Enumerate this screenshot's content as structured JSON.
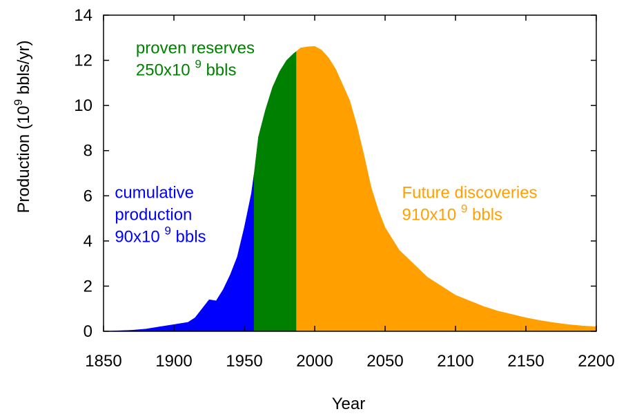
{
  "chart_data": {
    "type": "area",
    "title": "",
    "xlabel": "Year",
    "ylabel": {
      "pre": "Production (10",
      "sup": "9",
      "post": " bbls/yr)"
    },
    "xlim": [
      1850,
      2200
    ],
    "ylim": [
      0,
      14
    ],
    "x_ticks": [
      1850,
      1900,
      1950,
      2000,
      2050,
      2100,
      2150,
      2200
    ],
    "y_ticks": [
      0,
      2,
      4,
      6,
      8,
      10,
      12,
      14
    ],
    "grid": false,
    "series": [
      {
        "key": "cumulative",
        "color": "#0000ff",
        "x": [
          1850,
          1870,
          1880,
          1890,
          1900,
          1910,
          1915,
          1920,
          1925,
          1930,
          1935,
          1940,
          1945,
          1950,
          1955,
          1957
        ],
        "y": [
          0.0,
          0.05,
          0.1,
          0.2,
          0.3,
          0.4,
          0.6,
          1.0,
          1.4,
          1.35,
          1.85,
          2.5,
          3.3,
          4.6,
          6.1,
          7.0
        ]
      },
      {
        "key": "proven",
        "color": "#008000",
        "x": [
          1957,
          1960,
          1965,
          1970,
          1975,
          1980,
          1985,
          1987
        ],
        "y": [
          7.0,
          8.6,
          9.8,
          10.8,
          11.5,
          12.0,
          12.3,
          12.4
        ]
      },
      {
        "key": "future",
        "color": "#ffa000",
        "x": [
          1987,
          1990,
          1995,
          2000,
          2005,
          2010,
          2015,
          2020,
          2025,
          2030,
          2035,
          2040,
          2045,
          2050,
          2060,
          2070,
          2080,
          2090,
          2100,
          2110,
          2120,
          2130,
          2140,
          2150,
          2160,
          2170,
          2180,
          2190,
          2200
        ],
        "y": [
          12.4,
          12.55,
          12.6,
          12.62,
          12.45,
          12.1,
          11.6,
          10.9,
          10.2,
          9.1,
          7.8,
          6.4,
          5.4,
          4.6,
          3.6,
          3.0,
          2.4,
          2.0,
          1.6,
          1.35,
          1.1,
          0.9,
          0.75,
          0.6,
          0.48,
          0.38,
          0.3,
          0.24,
          0.2
        ]
      }
    ],
    "annotations": [
      {
        "key": "cumulative",
        "color": "#0000ff",
        "lines": [
          "cumulative",
          "production"
        ],
        "amount": "90x10",
        "sup": "9",
        "unit": " bbls"
      },
      {
        "key": "proven",
        "color": "#008000",
        "lines": [
          "proven reserves"
        ],
        "amount": "250x10",
        "sup": "9",
        "unit": " bbls"
      },
      {
        "key": "future",
        "color": "#ffa000",
        "lines": [
          "Future discoveries"
        ],
        "amount": "910x10",
        "sup": "9",
        "unit": " bbls"
      }
    ]
  }
}
